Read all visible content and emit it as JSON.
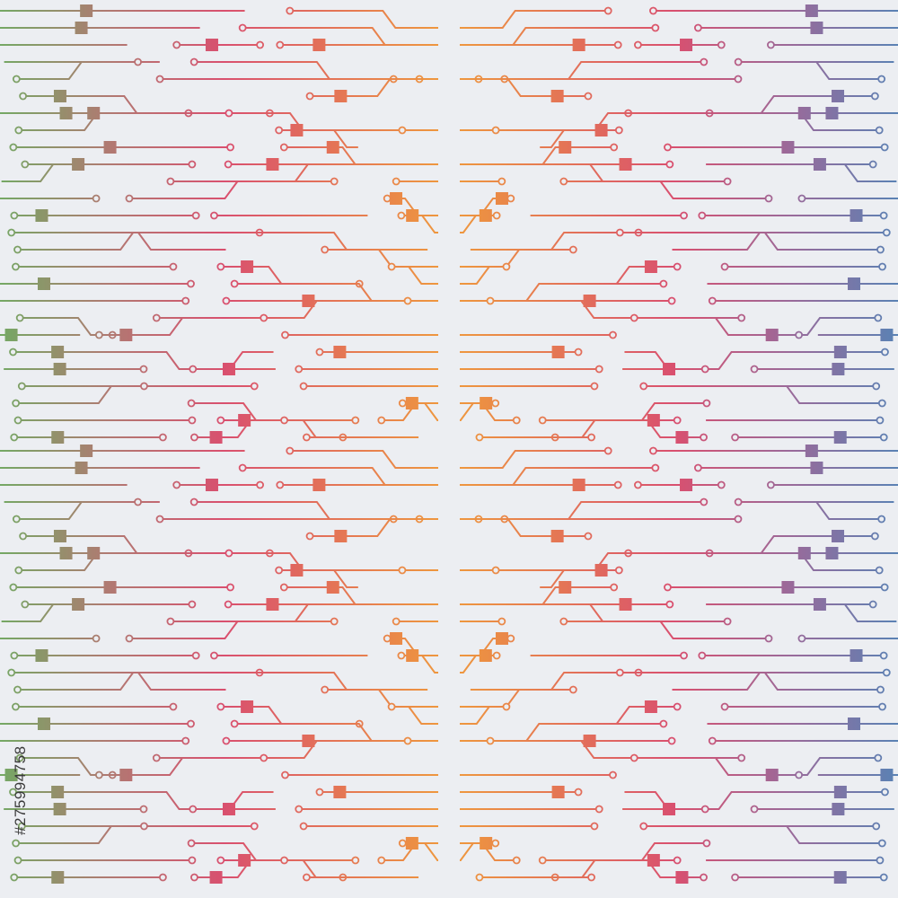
{
  "watermark": "#275994758"
}
